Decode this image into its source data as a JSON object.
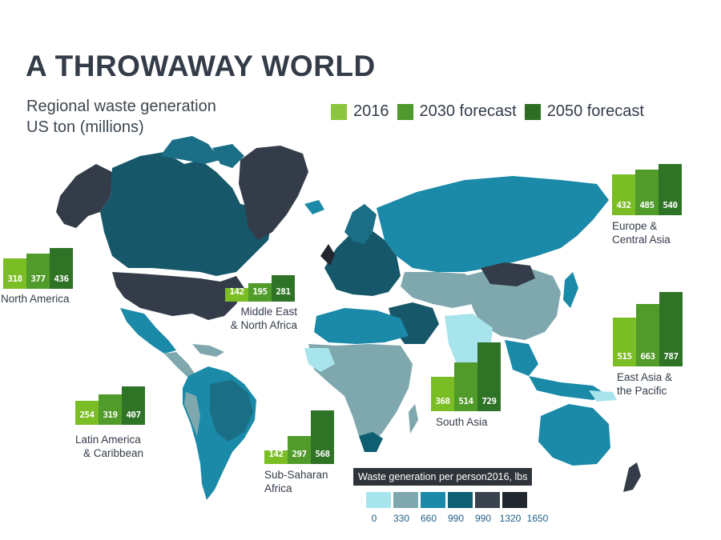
{
  "title": "A THROWAWAY WORLD",
  "subtitle_line1": "Regional waste generation",
  "subtitle_line2": "US ton (millions)",
  "legend": [
    {
      "label": "2016",
      "color": "#8cc63e"
    },
    {
      "label": "2030 forecast",
      "color": "#4e9a2c"
    },
    {
      "label": "2050 forecast",
      "color": "#2d6e22"
    }
  ],
  "bar_colors": [
    "#7bbd24",
    "#519b2a",
    "#2e7326"
  ],
  "regions": [
    {
      "id": "north-america",
      "name_lines": [
        "North America"
      ],
      "values": [
        318,
        377,
        436
      ]
    },
    {
      "id": "europe",
      "name_lines": [
        "Europe &",
        "Central Asia"
      ],
      "values": [
        432,
        485,
        540
      ]
    },
    {
      "id": "mena",
      "name_lines": [
        "Middle East",
        "& North Africa"
      ],
      "values": [
        142,
        195,
        281
      ]
    },
    {
      "id": "east-asia",
      "name_lines": [
        "East Asia &",
        "the Pacific"
      ],
      "values": [
        515,
        663,
        787
      ]
    },
    {
      "id": "south-asia",
      "name_lines": [
        "South Asia"
      ],
      "values": [
        368,
        514,
        729
      ]
    },
    {
      "id": "latin-america",
      "name_lines": [
        "Latin America",
        "& Caribbean"
      ],
      "values": [
        254,
        319,
        407
      ]
    },
    {
      "id": "sub-saharan",
      "name_lines": [
        "Sub-Saharan",
        "Africa"
      ],
      "values": [
        142,
        297,
        568
      ]
    }
  ],
  "scale": {
    "title": "Waste generation per person2016, lbs",
    "colors": [
      "#a8e4ec",
      "#7fa8ae",
      "#1a8aa8",
      "#0e5f72",
      "#3a4250",
      "#22262e"
    ],
    "ticks": [
      "0",
      "330",
      "660",
      "990",
      "990",
      "1320",
      "1650"
    ]
  }
}
